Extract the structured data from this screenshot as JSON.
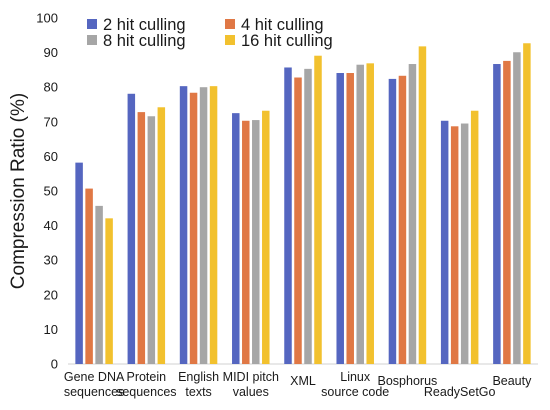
{
  "chart_data": {
    "type": "bar",
    "title": "",
    "xlabel": "",
    "ylabel": "Compression Ratio (%)",
    "ylim": [
      0,
      100
    ],
    "yticks": [
      0,
      10,
      20,
      30,
      40,
      50,
      60,
      70,
      80,
      90,
      100
    ],
    "grid": false,
    "legend_position": "top-left",
    "categories": [
      [
        "Gene DNA",
        "sequences"
      ],
      [
        "Protein",
        "sequences"
      ],
      [
        "English",
        "texts"
      ],
      [
        "MIDI pitch",
        "values"
      ],
      [
        "XML"
      ],
      [
        "Linux",
        "source code"
      ],
      [
        "Bosphorus"
      ],
      [
        "ReadySetGo"
      ],
      [
        "Beauty"
      ]
    ],
    "series": [
      {
        "name": "2 hit culling",
        "color": "#5566c0",
        "values": [
          58.2,
          78.1,
          80.3,
          72.5,
          85.7,
          84.1,
          82.4,
          70.3,
          86.7
        ]
      },
      {
        "name": "4 hit culling",
        "color": "#e07845",
        "values": [
          50.7,
          72.8,
          78.4,
          70.3,
          82.8,
          84.1,
          83.3,
          68.7,
          87.6
        ]
      },
      {
        "name": "8 hit culling",
        "color": "#a6a6a6",
        "values": [
          45.7,
          71.6,
          80.0,
          70.5,
          85.3,
          86.5,
          86.7,
          69.5,
          90.1
        ]
      },
      {
        "name": "16 hit culling",
        "color": "#f2c12e",
        "values": [
          42.1,
          74.2,
          80.3,
          73.2,
          89.1,
          86.9,
          91.8,
          73.2,
          92.7
        ]
      }
    ]
  }
}
